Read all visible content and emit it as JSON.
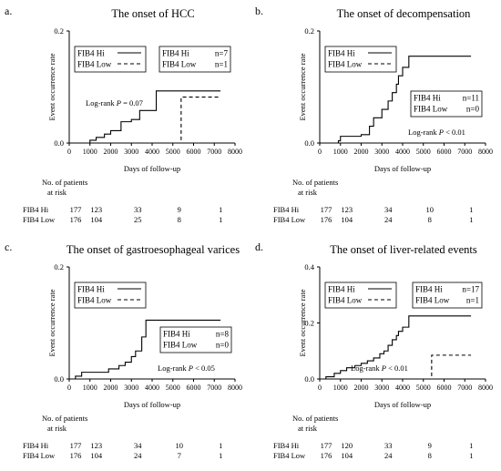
{
  "x_axis_label": "Days of follow-up",
  "risk_header": [
    "No. of patients",
    "at risk"
  ],
  "chart_data": [
    {
      "letter": "a.",
      "type": "line",
      "title": "The onset of HCC",
      "xlabel": "Days of follow-up",
      "ylabel": "Event occurrence rate",
      "xlim": [
        0,
        8000
      ],
      "ylim": [
        0,
        0.2
      ],
      "x_ticks": [
        "0",
        "1000",
        "2000",
        "3000",
        "4000",
        "5000",
        "6000",
        "7000",
        "8000"
      ],
      "y_ticks": [
        "0.0",
        "0.2"
      ],
      "grid": false,
      "legend": {
        "placement": "top-left",
        "entries": [
          "FIB4 Hi",
          "FIB4 Low"
        ]
      },
      "n_box": {
        "placement": "top-center",
        "rows": [
          [
            "FIB4 Hi",
            "n=7"
          ],
          [
            "FIB4 Low",
            "n=1"
          ]
        ]
      },
      "logrank": {
        "prefix": "Log-rank ",
        "p": "P",
        "rest": " = 0.07",
        "placement": "middle-left"
      },
      "series": [
        {
          "name": "FIB4 Hi",
          "dash": "solid",
          "x": [
            0,
            1000,
            1300,
            1700,
            2000,
            2500,
            3000,
            3400,
            4200,
            7300
          ],
          "y": [
            0,
            0.005,
            0.01,
            0.016,
            0.022,
            0.038,
            0.042,
            0.058,
            0.093,
            0.093
          ]
        },
        {
          "name": "FIB4 Low",
          "dash": "dashed",
          "x": [
            0,
            5400,
            7300
          ],
          "y": [
            0,
            0.082,
            0.082
          ]
        }
      ],
      "risk_table": {
        "rows": [
          {
            "label": "FIB4 Hi",
            "values": [
              "177",
              "123",
              "33",
              "9",
              "1"
            ]
          },
          {
            "label": "FIB4 Low",
            "values": [
              "176",
              "104",
              "25",
              "8",
              "1"
            ]
          }
        ]
      }
    },
    {
      "letter": "b.",
      "type": "line",
      "title": "The onset of decompensation",
      "xlabel": "Days of follow-up",
      "ylabel": "Event occurrence rate",
      "xlim": [
        0,
        8000
      ],
      "ylim": [
        0,
        0.2
      ],
      "x_ticks": [
        "0",
        "1000",
        "2000",
        "3000",
        "4000",
        "5000",
        "6000",
        "7000",
        "8000"
      ],
      "y_ticks": [
        "0.0",
        "0.2"
      ],
      "grid": false,
      "legend": {
        "placement": "top-left",
        "entries": [
          "FIB4 Hi",
          "FIB4 Low"
        ]
      },
      "n_box": {
        "placement": "middle-right",
        "rows": [
          [
            "FIB4 Hi",
            "n=11"
          ],
          [
            "FIB4 Low",
            "n=0"
          ]
        ]
      },
      "logrank": {
        "prefix": "Log-rank ",
        "p": "P",
        "rest": " < 0.01",
        "placement": "bottom-right"
      },
      "series": [
        {
          "name": "FIB4 Hi",
          "dash": "solid",
          "x": [
            0,
            900,
            1000,
            2000,
            2400,
            2600,
            3000,
            3300,
            3500,
            3700,
            3800,
            4000,
            4300,
            7300
          ],
          "y": [
            0,
            0.004,
            0.012,
            0.015,
            0.03,
            0.045,
            0.06,
            0.075,
            0.09,
            0.105,
            0.12,
            0.135,
            0.155,
            0.155
          ]
        },
        {
          "name": "FIB4 Low",
          "dash": "dashed",
          "x": [
            0,
            7300
          ],
          "y": [
            0,
            0
          ]
        }
      ],
      "risk_table": {
        "rows": [
          {
            "label": "FIB4 Hi",
            "values": [
              "177",
              "123",
              "34",
              "10",
              "1"
            ]
          },
          {
            "label": "FIB4 Low",
            "values": [
              "176",
              "104",
              "24",
              "8",
              "1"
            ]
          }
        ]
      }
    },
    {
      "letter": "c.",
      "type": "line",
      "title": "The onset of gastroesophageal varices",
      "xlabel": "Days of follow-up",
      "ylabel": "Event occurrence rate",
      "xlim": [
        0,
        8000
      ],
      "ylim": [
        0,
        0.2
      ],
      "x_ticks": [
        "0",
        "1000",
        "2000",
        "3000",
        "4000",
        "5000",
        "6000",
        "7000",
        "8000"
      ],
      "y_ticks": [
        "0.0",
        "0.2"
      ],
      "grid": false,
      "legend": {
        "placement": "top-left",
        "entries": [
          "FIB4 Hi",
          "FIB4 Low"
        ]
      },
      "n_box": {
        "placement": "middle-right",
        "rows": [
          [
            "FIB4 Hi",
            "n=8"
          ],
          [
            "FIB4 Low",
            "n=0"
          ]
        ]
      },
      "logrank": {
        "prefix": "Log-rank ",
        "p": "P",
        "rest": " < 0.05",
        "placement": "bottom-right"
      },
      "series": [
        {
          "name": "FIB4 Hi",
          "dash": "solid",
          "x": [
            0,
            300,
            600,
            1900,
            2400,
            2700,
            3000,
            3200,
            3500,
            3700,
            7300
          ],
          "y": [
            0,
            0.005,
            0.012,
            0.018,
            0.024,
            0.03,
            0.04,
            0.05,
            0.075,
            0.105,
            0.105
          ]
        },
        {
          "name": "FIB4 Low",
          "dash": "dashed",
          "x": [
            0,
            7300
          ],
          "y": [
            0,
            0
          ]
        }
      ],
      "risk_table": {
        "rows": [
          {
            "label": "FIB4 Hi",
            "values": [
              "177",
              "123",
              "34",
              "10",
              "1"
            ]
          },
          {
            "label": "FIB4 Low",
            "values": [
              "176",
              "104",
              "24",
              "7",
              "1"
            ]
          }
        ]
      }
    },
    {
      "letter": "d.",
      "type": "line",
      "title": "The onset of liver-related events",
      "xlabel": "Days of follow-up",
      "ylabel": "Event occurrence rate",
      "xlim": [
        0,
        8000
      ],
      "ylim": [
        0,
        0.4
      ],
      "x_ticks": [
        "0",
        "1000",
        "2000",
        "3000",
        "4000",
        "5000",
        "6000",
        "7000",
        "8000"
      ],
      "y_ticks": [
        "0.0",
        "0.2",
        "0.4"
      ],
      "grid": false,
      "legend": {
        "placement": "top-left",
        "entries": [
          "FIB4 Hi",
          "FIB4 Low"
        ]
      },
      "n_box": {
        "placement": "top-right",
        "rows": [
          [
            "FIB4 Hi",
            "n=17"
          ],
          [
            "FIB4 Low",
            "n=1"
          ]
        ]
      },
      "logrank": {
        "prefix": "Log-rank ",
        "p": "P",
        "rest": " < 0.01",
        "placement": "bottom-center"
      },
      "series": [
        {
          "name": "FIB4 Hi",
          "dash": "solid",
          "x": [
            0,
            300,
            700,
            1000,
            1300,
            1700,
            2000,
            2300,
            2600,
            2900,
            3100,
            3300,
            3500,
            3700,
            3800,
            4000,
            4300,
            7300
          ],
          "y": [
            0,
            0.008,
            0.02,
            0.03,
            0.04,
            0.048,
            0.056,
            0.065,
            0.075,
            0.09,
            0.1,
            0.12,
            0.14,
            0.155,
            0.17,
            0.185,
            0.225,
            0.225
          ]
        },
        {
          "name": "FIB4 Low",
          "dash": "dashed",
          "x": [
            0,
            5400,
            7300
          ],
          "y": [
            0,
            0.085,
            0.085
          ]
        }
      ],
      "risk_table": {
        "rows": [
          {
            "label": "FIB4 Hi",
            "values": [
              "177",
              "120",
              "33",
              "9",
              "1"
            ]
          },
          {
            "label": "FIB4 Low",
            "values": [
              "176",
              "104",
              "24",
              "8",
              "1"
            ]
          }
        ]
      }
    }
  ]
}
